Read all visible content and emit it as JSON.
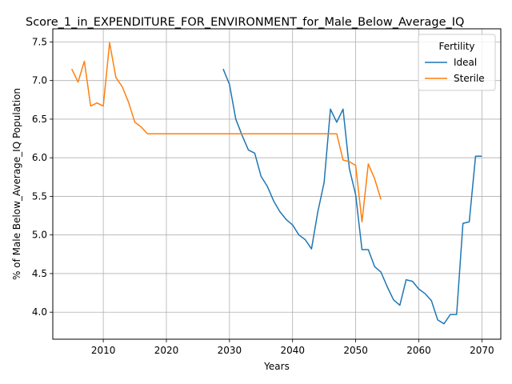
{
  "chart_data": {
    "type": "line",
    "title": "Score_1_in_EXPENDITURE_FOR_ENVIRONMENT_for_Male_Below_Average_IQ",
    "xlabel": "Years",
    "ylabel": "% of Male Below_Average_IQ Population",
    "xlim": [
      2002,
      2073
    ],
    "ylim": [
      3.65,
      7.67
    ],
    "xticks": [
      2010,
      2020,
      2030,
      2040,
      2050,
      2060,
      2070
    ],
    "yticks": [
      4.0,
      4.5,
      5.0,
      5.5,
      6.0,
      6.5,
      7.0,
      7.5
    ],
    "grid": true,
    "legend": {
      "title": "Fertility",
      "placement": "top-right"
    },
    "series": [
      {
        "name": "Ideal",
        "color": "#1f77b4",
        "x": [
          2029,
          2030,
          2031,
          2032,
          2033,
          2034,
          2035,
          2036,
          2037,
          2038,
          2039,
          2040,
          2041,
          2042,
          2043,
          2044,
          2045,
          2046,
          2047,
          2048,
          2049,
          2050,
          2051,
          2052,
          2053,
          2054,
          2055,
          2056,
          2057,
          2058,
          2059,
          2060,
          2061,
          2062,
          2063,
          2064,
          2065,
          2066,
          2067,
          2068,
          2069,
          2070
        ],
        "y": [
          7.15,
          6.95,
          6.5,
          6.29,
          6.1,
          6.06,
          5.76,
          5.63,
          5.44,
          5.3,
          5.2,
          5.13,
          5.0,
          4.94,
          4.82,
          5.3,
          5.68,
          6.63,
          6.46,
          6.63,
          5.86,
          5.52,
          4.81,
          4.81,
          4.59,
          4.52,
          4.33,
          4.16,
          4.09,
          4.42,
          4.4,
          4.3,
          4.24,
          4.15,
          3.9,
          3.85,
          3.97,
          3.97,
          5.15,
          5.17,
          6.02,
          6.02
        ]
      },
      {
        "name": "Sterile",
        "color": "#ff7f0e",
        "x": [
          2005,
          2006,
          2007,
          2008,
          2009,
          2010,
          2011,
          2012,
          2013,
          2014,
          2015,
          2016,
          2017,
          2018,
          2019,
          2020,
          2021,
          2022,
          2023,
          2024,
          2025,
          2026,
          2027,
          2028,
          2029,
          2030,
          2031,
          2032,
          2033,
          2034,
          2035,
          2036,
          2037,
          2038,
          2039,
          2040,
          2041,
          2042,
          2043,
          2044,
          2045,
          2046,
          2047,
          2048,
          2049,
          2050,
          2051,
          2052,
          2053,
          2054
        ],
        "y": [
          7.15,
          6.98,
          7.25,
          6.67,
          6.71,
          6.67,
          7.49,
          7.04,
          6.92,
          6.72,
          6.46,
          6.4,
          6.31,
          6.31,
          6.31,
          6.31,
          6.31,
          6.31,
          6.31,
          6.31,
          6.31,
          6.31,
          6.31,
          6.31,
          6.31,
          6.31,
          6.31,
          6.31,
          6.31,
          6.31,
          6.31,
          6.31,
          6.31,
          6.31,
          6.31,
          6.31,
          6.31,
          6.31,
          6.31,
          6.31,
          6.31,
          6.31,
          6.31,
          5.97,
          5.95,
          5.9,
          5.17,
          5.92,
          5.73,
          5.46
        ]
      }
    ]
  }
}
